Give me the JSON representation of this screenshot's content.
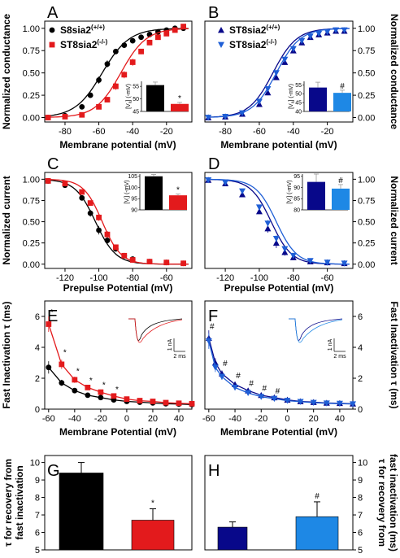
{
  "chart_data": [
    {
      "panel": "A",
      "type": "scatter",
      "xlabel": "Membrane potential (mV)",
      "ylabel": "Normalized conductance",
      "xlim": [
        -92,
        -5
      ],
      "ylim": [
        -0.05,
        1.08
      ],
      "xticks": [
        -80,
        -60,
        -40,
        -20
      ],
      "yticks": [
        0.0,
        0.25,
        0.5,
        0.75,
        1.0
      ],
      "ytick_labels": [
        "0.00",
        "0.25",
        "0.50",
        "0.75",
        "1.00"
      ],
      "ytick_side": "left",
      "series": [
        {
          "name": "S8sia2",
          "sup": "(+/+)",
          "color": "#000000",
          "marker": "circle",
          "x": [
            -90,
            -80,
            -70,
            -65,
            -60,
            -55,
            -50,
            -45,
            -40,
            -35,
            -30,
            -25,
            -20,
            -15,
            -10
          ],
          "y": [
            0.0,
            0.02,
            0.12,
            0.25,
            0.42,
            0.6,
            0.74,
            0.81,
            0.86,
            0.9,
            0.93,
            0.96,
            0.98,
            1.0,
            1.0
          ],
          "err": [
            0,
            0,
            0.02,
            0.03,
            0.04,
            0.04,
            0.03,
            0.02,
            0.02,
            0.02,
            0.02,
            0.01,
            0.01,
            0.01,
            0.01
          ],
          "fit": {
            "v_half": -58,
            "k": 8
          }
        },
        {
          "name": "ST8sia2",
          "sup": "(-/-)",
          "color": "#e31a1c",
          "marker": "square",
          "x": [
            -90,
            -80,
            -70,
            -60,
            -55,
            -50,
            -45,
            -40,
            -35,
            -30,
            -25,
            -20,
            -15,
            -10
          ],
          "y": [
            0.0,
            0.01,
            0.03,
            0.12,
            0.2,
            0.35,
            0.48,
            0.62,
            0.74,
            0.84,
            0.9,
            0.94,
            0.98,
            1.02
          ],
          "err": [
            0,
            0,
            0.01,
            0.02,
            0.03,
            0.04,
            0.04,
            0.04,
            0.03,
            0.03,
            0.02,
            0.02,
            0.02,
            0.02
          ],
          "fit": {
            "v_half": -47,
            "k": 7.5
          }
        }
      ],
      "inset": {
        "ylabel_pre": "[V",
        "ylabel_sub": "a",
        "ylabel_post": "] (-mV)",
        "ylim": [
          45,
          57
        ],
        "yticks": [
          45,
          50,
          55
        ],
        "bars": [
          {
            "value": 55.5,
            "err": 1.2,
            "color": "#000000"
          },
          {
            "value": 48,
            "err": 0.6,
            "color": "#e31a1c",
            "mark": "*"
          }
        ]
      }
    },
    {
      "panel": "B",
      "type": "scatter",
      "xlabel": "Membrane potential (mV)",
      "ylabel": "Normalized conductance",
      "xlim": [
        -92,
        -5
      ],
      "ylim": [
        -0.05,
        1.08
      ],
      "xticks": [
        -80,
        -60,
        -40,
        -20
      ],
      "yticks": [
        0.0,
        0.25,
        0.5,
        0.75,
        1.0
      ],
      "ytick_labels": [
        "0.00",
        "0.25",
        "0.50",
        "0.75",
        "1.00"
      ],
      "ytick_side": "right",
      "series": [
        {
          "name": "ST8sia2",
          "sup": "(+/+)",
          "color": "#08088a",
          "marker": "triangle-up",
          "x": [
            -90,
            -80,
            -70,
            -60,
            -55,
            -50,
            -45,
            -40,
            -35,
            -30,
            -25,
            -20,
            -15,
            -10
          ],
          "y": [
            0.0,
            0.01,
            0.04,
            0.15,
            0.28,
            0.45,
            0.62,
            0.75,
            0.84,
            0.9,
            0.93,
            0.95,
            0.97,
            0.97
          ],
          "err": [
            0,
            0,
            0.01,
            0.02,
            0.03,
            0.03,
            0.03,
            0.03,
            0.03,
            0.02,
            0.02,
            0.03,
            0.03,
            0.03
          ],
          "fit": {
            "v_half": -52,
            "k": 7
          }
        },
        {
          "name": "ST8sia2",
          "sup": "(-/-)",
          "color": "#1f5fd6",
          "marker": "triangle-down",
          "x": [
            -90,
            -80,
            -70,
            -60,
            -55,
            -50,
            -45,
            -40,
            -35,
            -30,
            -25,
            -20,
            -15,
            -10
          ],
          "y": [
            0.0,
            0.01,
            0.05,
            0.18,
            0.32,
            0.5,
            0.65,
            0.77,
            0.86,
            0.91,
            0.94,
            0.96,
            0.98,
            0.98
          ],
          "err": [
            0,
            0,
            0.01,
            0.02,
            0.03,
            0.03,
            0.03,
            0.03,
            0.03,
            0.02,
            0.02,
            0.03,
            0.03,
            0.03
          ],
          "fit": {
            "v_half": -50,
            "k": 7
          }
        }
      ],
      "inset": {
        "ylabel_pre": "[V",
        "ylabel_sub": "a",
        "ylabel_post": "] (-mV)",
        "ylim": [
          40,
          57
        ],
        "yticks": [
          40,
          45,
          50,
          55
        ],
        "bars": [
          {
            "value": 53.5,
            "err": 3,
            "color": "#08088a"
          },
          {
            "value": 50.5,
            "err": 1.5,
            "color": "#1e88e5",
            "mark": "#"
          }
        ]
      }
    },
    {
      "panel": "C",
      "type": "scatter",
      "xlabel": "Prepulse Potential (mV)",
      "ylabel": "Normalized current",
      "xlim": [
        -132,
        -45
      ],
      "ylim": [
        -0.05,
        1.08
      ],
      "xticks": [
        -120,
        -100,
        -80,
        -60
      ],
      "yticks": [
        0.0,
        0.25,
        0.5,
        0.75,
        1.0
      ],
      "ytick_labels": [
        "0.00",
        "0.25",
        "0.50",
        "0.75",
        "1.00"
      ],
      "ytick_side": "left",
      "series": [
        {
          "name": "S8sia2",
          "sup": "(+/+)",
          "color": "#000000",
          "marker": "circle",
          "x": [
            -130,
            -120,
            -110,
            -105,
            -100,
            -95,
            -90,
            -85,
            -80,
            -70,
            -60,
            -50
          ],
          "y": [
            0.98,
            0.93,
            0.78,
            0.6,
            0.4,
            0.28,
            0.18,
            0.1,
            0.06,
            0.03,
            0.02,
            0.01
          ],
          "err": [
            0.01,
            0.01,
            0.03,
            0.04,
            0.05,
            0.04,
            0.03,
            0.02,
            0.01,
            0.01,
            0.01,
            0.01
          ],
          "fit": {
            "v_half": -102,
            "k": -6
          }
        },
        {
          "name": "ST8sia2",
          "sup": "(-/-)",
          "color": "#e31a1c",
          "marker": "square",
          "x": [
            -130,
            -120,
            -110,
            -105,
            -100,
            -95,
            -90,
            -85,
            -80,
            -70,
            -60,
            -50
          ],
          "y": [
            0.98,
            0.95,
            0.85,
            0.72,
            0.55,
            0.35,
            0.2,
            0.1,
            0.05,
            0.03,
            0.02,
            0.01
          ],
          "err": [
            0.01,
            0.01,
            0.02,
            0.03,
            0.04,
            0.04,
            0.03,
            0.02,
            0.01,
            0.01,
            0.01,
            0.01
          ],
          "fit": {
            "v_half": -98,
            "k": -5.5
          }
        }
      ],
      "inset": {
        "ylabel_pre": "[V",
        "ylabel_sub": "i",
        "ylabel_post": "] (-mV)",
        "ylim": [
          90,
          106
        ],
        "yticks": [
          90,
          95,
          100,
          105
        ],
        "bars": [
          {
            "value": 105,
            "err": 0.8,
            "color": "#000000"
          },
          {
            "value": 96.5,
            "err": 0.6,
            "color": "#e31a1c",
            "mark": "*"
          }
        ]
      }
    },
    {
      "panel": "D",
      "type": "scatter",
      "xlabel": "Prepulse Potential (mV)",
      "ylabel": "Normalized current",
      "xlim": [
        -132,
        -45
      ],
      "ylim": [
        -0.05,
        1.08
      ],
      "xticks": [
        -120,
        -100,
        -80,
        -60
      ],
      "yticks": [
        0.0,
        0.25,
        0.5,
        0.75,
        1.0
      ],
      "ytick_labels": [
        "0.00",
        "0.25",
        "0.50",
        "0.75",
        "1.00"
      ],
      "ytick_side": "right",
      "series": [
        {
          "name": "ST8sia2",
          "sup": "(+/+)",
          "color": "#08088a",
          "marker": "triangle-up",
          "x": [
            -130,
            -120,
            -110,
            -100,
            -95,
            -90,
            -85,
            -80,
            -70,
            -60,
            -50
          ],
          "y": [
            0.99,
            0.95,
            0.82,
            0.62,
            0.42,
            0.25,
            0.14,
            0.08,
            0.03,
            0.02,
            0.01
          ],
          "err": [
            0.01,
            0.01,
            0.02,
            0.03,
            0.05,
            0.06,
            0.04,
            0.03,
            0.02,
            0.01,
            0.01
          ],
          "fit": {
            "v_half": -93,
            "k": -6
          }
        },
        {
          "name": "ST8sia2",
          "sup": "(-/-)",
          "color": "#1f5fd6",
          "marker": "triangle-down",
          "x": [
            -130,
            -120,
            -110,
            -100,
            -95,
            -90,
            -85,
            -80,
            -70,
            -60,
            -50
          ],
          "y": [
            0.99,
            0.96,
            0.86,
            0.67,
            0.48,
            0.3,
            0.18,
            0.1,
            0.04,
            0.02,
            0.01
          ],
          "err": [
            0.01,
            0.01,
            0.02,
            0.03,
            0.04,
            0.04,
            0.03,
            0.02,
            0.02,
            0.01,
            0.01
          ],
          "fit": {
            "v_half": -90,
            "k": -6
          }
        }
      ],
      "inset": {
        "ylabel_pre": "[V",
        "ylabel_sub": "i",
        "ylabel_post": "] (-mV)",
        "ylim": [
          80,
          96
        ],
        "yticks": [
          80,
          85,
          90,
          95
        ],
        "bars": [
          {
            "value": 92.5,
            "err": 3.5,
            "color": "#08088a"
          },
          {
            "value": 89.5,
            "err": 1.8,
            "color": "#1e88e5",
            "mark": "#"
          }
        ]
      }
    },
    {
      "panel": "E",
      "type": "line",
      "xlabel": "Membrane Potential (mV)",
      "ylabel": "Fast Inactivation τ (ms)",
      "xlim": [
        -63,
        50
      ],
      "ylim": [
        0,
        7
      ],
      "xticks": [
        -60,
        -40,
        -20,
        0,
        20,
        40
      ],
      "yticks": [
        0,
        2,
        4,
        6
      ],
      "ytick_side": "left",
      "series": [
        {
          "name": "S8sia2",
          "sup": "(+/+)",
          "color": "#000000",
          "marker": "circle",
          "x": [
            -60,
            -50,
            -40,
            -30,
            -20,
            -10,
            0,
            10,
            20,
            30,
            40,
            50
          ],
          "y": [
            2.7,
            1.7,
            1.2,
            0.9,
            0.75,
            0.6,
            0.5,
            0.45,
            0.4,
            0.35,
            0.33,
            0.3
          ],
          "err": [
            0.4,
            0.2,
            0.12,
            0.1,
            0.08,
            0.06,
            0.05,
            0.04,
            0.04,
            0.03,
            0.03,
            0.03
          ]
        },
        {
          "name": "ST8sia2",
          "sup": "(-/-)",
          "color": "#e31a1c",
          "marker": "square",
          "x": [
            -60,
            -50,
            -40,
            -30,
            -20,
            -10,
            0,
            10,
            20,
            30,
            40,
            50
          ],
          "y": [
            5.5,
            2.9,
            1.9,
            1.4,
            1.1,
            0.85,
            0.65,
            0.55,
            0.5,
            0.42,
            0.38,
            0.35
          ],
          "err": [
            0.5,
            0.3,
            0.2,
            0.15,
            0.1,
            0.08,
            0.06,
            0.05,
            0.04,
            0.04,
            0.03,
            0.03
          ]
        }
      ],
      "markers": [
        {
          "x": -60,
          "y": 6.2,
          "text": "*"
        },
        {
          "x": -50,
          "y": 3.6,
          "text": "*"
        },
        {
          "x": -40,
          "y": 2.4,
          "text": "*"
        },
        {
          "x": -30,
          "y": 1.8,
          "text": "*"
        },
        {
          "x": -20,
          "y": 1.5,
          "text": "*"
        },
        {
          "x": -10,
          "y": 1.2,
          "text": "*"
        }
      ],
      "traces": {
        "scale_y": "1 nA",
        "scale_x": "2 ms",
        "colors": [
          "#000000",
          "#e31a1c"
        ]
      }
    },
    {
      "panel": "F",
      "type": "line",
      "xlabel": "Membrane Potential (mV)",
      "ylabel": "Fast Inactivation τ (ms)",
      "xlim": [
        -63,
        50
      ],
      "ylim": [
        0,
        7
      ],
      "xticks": [
        -60,
        -40,
        -20,
        0,
        20,
        40
      ],
      "yticks": [
        0,
        2,
        4,
        6
      ],
      "ytick_side": "right",
      "series": [
        {
          "name": "ST8sia2",
          "sup": "(+/+)",
          "color": "#08088a",
          "marker": "triangle-up",
          "x": [
            -60,
            -55,
            -50,
            -40,
            -30,
            -20,
            -10,
            0,
            10,
            20,
            30,
            40,
            50
          ],
          "y": [
            4.6,
            3.0,
            2.3,
            1.6,
            1.2,
            0.9,
            0.75,
            0.6,
            0.5,
            0.45,
            0.4,
            0.38,
            0.35
          ],
          "err": [
            0.5,
            0.3,
            0.2,
            0.15,
            0.1,
            0.08,
            0.07,
            0.06,
            0.05,
            0.05,
            0.04,
            0.04,
            0.04
          ]
        },
        {
          "name": "ST8sia2",
          "sup": "(-/-)",
          "color": "#1f5fd6",
          "marker": "triangle-down",
          "x": [
            -60,
            -55,
            -50,
            -40,
            -30,
            -20,
            -10,
            0,
            10,
            20,
            30,
            40,
            50
          ],
          "y": [
            4.4,
            2.7,
            2.1,
            1.4,
            1.05,
            0.8,
            0.68,
            0.55,
            0.48,
            0.42,
            0.38,
            0.36,
            0.33
          ],
          "err": [
            0.5,
            0.3,
            0.2,
            0.15,
            0.1,
            0.08,
            0.07,
            0.06,
            0.05,
            0.05,
            0.04,
            0.04,
            0.04
          ]
        }
      ],
      "markers": [
        {
          "x": -60,
          "y": 5.3,
          "text": "#"
        },
        {
          "x": -50,
          "y": 2.9,
          "text": "#"
        },
        {
          "x": -40,
          "y": 2.1,
          "text": "#"
        },
        {
          "x": -30,
          "y": 1.6,
          "text": "#"
        },
        {
          "x": -20,
          "y": 1.3,
          "text": "#"
        },
        {
          "x": -10,
          "y": 1.1,
          "text": "#"
        }
      ],
      "traces": {
        "scale_y": "1 nA",
        "scale_x": "2 ms",
        "colors": [
          "#08088a",
          "#1e88e5"
        ]
      }
    },
    {
      "panel": "G",
      "type": "bar",
      "ylabel_lines": [
        "τ for recovery from",
        "fast inactivation"
      ],
      "ylim": [
        5,
        10.4
      ],
      "yticks": [
        5,
        6,
        7,
        8,
        9,
        10
      ],
      "ytick_side": "left",
      "bars": [
        {
          "value": 9.4,
          "err": 0.6,
          "color": "#000000"
        },
        {
          "value": 6.7,
          "err": 0.65,
          "color": "#e31a1c",
          "mark": "*"
        }
      ]
    },
    {
      "panel": "H",
      "type": "bar",
      "ylabel_lines": [
        "τ for recovery from",
        "fast inactivation (ms)"
      ],
      "ylim": [
        5,
        10.4
      ],
      "yticks": [
        5,
        6,
        7,
        8,
        9,
        10
      ],
      "ytick_side": "right",
      "bars": [
        {
          "value": 6.3,
          "err": 0.3,
          "color": "#08088a"
        },
        {
          "value": 6.9,
          "err": 0.85,
          "color": "#1e88e5",
          "mark": "#"
        }
      ]
    }
  ]
}
